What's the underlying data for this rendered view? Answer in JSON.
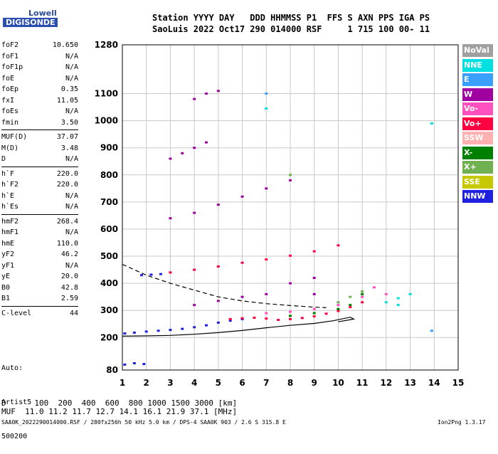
{
  "logo": {
    "line1": "Lowell",
    "line2": "DIGISONDE"
  },
  "header": {
    "line1": "Station YYYY DAY   DDD HHMMSS P1  FFS S AXN PPS IGA PS",
    "line2": "SaoLuis 2022 Oct17 290 014000 RSF     1 715 100 00- 11"
  },
  "params": [
    {
      "name": "foF2",
      "value": "10.650"
    },
    {
      "name": "foF1",
      "value": "N/A"
    },
    {
      "name": "foF1p",
      "value": "N/A"
    },
    {
      "name": "foE",
      "value": "N/A"
    },
    {
      "name": "foEp",
      "value": "0.35"
    },
    {
      "name": "fxI",
      "value": "11.05"
    },
    {
      "name": "foEs",
      "value": "N/A"
    },
    {
      "name": "fmin",
      "value": "3.50"
    },
    {
      "name": "MUF(D)",
      "value": "37.07",
      "sep": true
    },
    {
      "name": "M(D)",
      "value": "3.48"
    },
    {
      "name": "D",
      "value": "N/A"
    },
    {
      "name": "h`F",
      "value": "220.0",
      "sep": true
    },
    {
      "name": "h`F2",
      "value": "220.0"
    },
    {
      "name": "h`E",
      "value": "N/A"
    },
    {
      "name": "h`Es",
      "value": "N/A"
    },
    {
      "name": "hmF2",
      "value": "268.4",
      "sep": true
    },
    {
      "name": "hmF1",
      "value": "N/A"
    },
    {
      "name": "hmE",
      "value": "110.0"
    },
    {
      "name": "yF2",
      "value": "46.2"
    },
    {
      "name": "yF1",
      "value": "N/A"
    },
    {
      "name": "yE",
      "value": "20.0"
    },
    {
      "name": "B0",
      "value": "42.8"
    },
    {
      "name": "B1",
      "value": "2.59"
    },
    {
      "name": "C-level",
      "value": "44",
      "sep": true
    }
  ],
  "auto": {
    "line1": "Auto:",
    "line2": "Artist5",
    "line3": "500200"
  },
  "legend": [
    {
      "label": "NoVal",
      "color": "#a0a0a0"
    },
    {
      "label": "NNE",
      "color": "#00e0e0"
    },
    {
      "label": "E",
      "color": "#3aa0ff"
    },
    {
      "label": "W",
      "color": "#a000a0"
    },
    {
      "label": "Vo-",
      "color": "#ff50c0"
    },
    {
      "label": "Vo+",
      "color": "#ff0040"
    },
    {
      "label": "SSW",
      "color": "#ffb0b0"
    },
    {
      "label": "X-",
      "color": "#008000"
    },
    {
      "label": "X+",
      "color": "#70b050"
    },
    {
      "label": "SSE",
      "color": "#c8c800"
    },
    {
      "label": "NNW",
      "color": "#2020e0"
    }
  ],
  "footer": {
    "line1": "D      100  200  400  600  800 1000 1500 3000 [km]",
    "line2": "MUF  11.0 11.2 11.7 12.7 14.1 16.1 21.9 37.1 [MHz]",
    "line3": "SAA0K_2022290014000.RSF / 280fx256h 50 kHz 5.0 km / DPS-4 SAA0K 903 / 2.6 S 315.8 E",
    "line4": "Ion2Png 1.3.17"
  },
  "chart_data": {
    "type": "scatter",
    "xlabel": "",
    "ylabel": "",
    "xlim": [
      1,
      15
    ],
    "ylim": [
      80,
      1280
    ],
    "x_ticks": [
      1,
      2,
      3,
      4,
      5,
      6,
      7,
      8,
      9,
      10,
      11,
      12,
      13,
      14,
      15
    ],
    "y_ticks": [
      80,
      200,
      300,
      400,
      500,
      600,
      700,
      800,
      900,
      1000,
      1100,
      1280
    ],
    "grid": true,
    "series": [
      {
        "name": "NNW",
        "color": "#2020e0",
        "points": [
          [
            1.1,
            215
          ],
          [
            1.5,
            218
          ],
          [
            2.0,
            222
          ],
          [
            2.5,
            225
          ],
          [
            3.0,
            228
          ],
          [
            3.5,
            232
          ],
          [
            4.0,
            238
          ],
          [
            4.5,
            245
          ],
          [
            5.0,
            255
          ],
          [
            5.5,
            262
          ],
          [
            6.0,
            268
          ],
          [
            1.1,
            100
          ],
          [
            1.5,
            105
          ],
          [
            1.9,
            102
          ],
          [
            1.8,
            430
          ],
          [
            2.2,
            432
          ],
          [
            2.6,
            434
          ]
        ]
      },
      {
        "name": "Vo+",
        "color": "#ff0040",
        "points": [
          [
            5.5,
            268
          ],
          [
            6.0,
            271
          ],
          [
            6.5,
            273
          ],
          [
            7.0,
            270
          ],
          [
            7.5,
            265
          ],
          [
            8.0,
            268
          ],
          [
            8.5,
            272
          ],
          [
            9.0,
            278
          ],
          [
            9.5,
            288
          ],
          [
            10.0,
            298
          ],
          [
            10.5,
            312
          ],
          [
            11.0,
            330
          ],
          [
            3.0,
            440
          ],
          [
            4.0,
            450
          ],
          [
            5.0,
            462
          ],
          [
            6.0,
            476
          ],
          [
            7.0,
            488
          ],
          [
            8.0,
            502
          ],
          [
            9.0,
            518
          ],
          [
            10.0,
            540
          ]
        ]
      },
      {
        "name": "Vo-",
        "color": "#ff50c0",
        "points": [
          [
            7.0,
            290
          ],
          [
            8.0,
            295
          ],
          [
            9.0,
            305
          ],
          [
            10.0,
            320
          ],
          [
            11.0,
            350
          ],
          [
            11.5,
            385
          ],
          [
            12.0,
            360
          ]
        ]
      },
      {
        "name": "W",
        "color": "#a000a0",
        "points": [
          [
            4.0,
            320
          ],
          [
            5.0,
            335
          ],
          [
            6.0,
            350
          ],
          [
            7.0,
            360
          ],
          [
            8.0,
            400
          ],
          [
            9.0,
            420
          ],
          [
            3.0,
            640
          ],
          [
            4.0,
            660
          ],
          [
            5.0,
            690
          ],
          [
            6.0,
            720
          ],
          [
            7.0,
            750
          ],
          [
            8.0,
            780
          ],
          [
            3.0,
            860
          ],
          [
            3.5,
            880
          ],
          [
            4.0,
            900
          ],
          [
            4.5,
            920
          ],
          [
            4.0,
            1080
          ],
          [
            4.5,
            1100
          ],
          [
            5.0,
            1110
          ],
          [
            9.0,
            360
          ]
        ]
      },
      {
        "name": "X-",
        "color": "#008000",
        "points": [
          [
            8.0,
            280
          ],
          [
            9.0,
            290
          ],
          [
            10.0,
            305
          ],
          [
            10.5,
            320
          ],
          [
            11.0,
            360
          ]
        ]
      },
      {
        "name": "X+",
        "color": "#70b050",
        "points": [
          [
            10.0,
            330
          ],
          [
            10.5,
            350
          ],
          [
            11.0,
            370
          ],
          [
            8.0,
            800
          ]
        ]
      },
      {
        "name": "NNE",
        "color": "#00e0e0",
        "points": [
          [
            12.0,
            330
          ],
          [
            12.5,
            345
          ],
          [
            13.0,
            360
          ],
          [
            12.5,
            320
          ],
          [
            7.0,
            1045
          ],
          [
            13.9,
            990
          ]
        ]
      },
      {
        "name": "E",
        "color": "#3aa0ff",
        "points": [
          [
            7.0,
            1100
          ],
          [
            13.9,
            225
          ]
        ]
      }
    ],
    "curves": [
      {
        "name": "profile-solid",
        "points": [
          [
            1.0,
            205
          ],
          [
            2.0,
            206
          ],
          [
            3.0,
            208
          ],
          [
            4.0,
            212
          ],
          [
            5.0,
            218
          ],
          [
            6.0,
            226
          ],
          [
            7.0,
            236
          ],
          [
            8.0,
            245
          ],
          [
            9.0,
            252
          ],
          [
            9.8,
            262
          ],
          [
            10.5,
            275
          ],
          [
            10.65,
            268
          ],
          [
            10.0,
            258
          ]
        ]
      },
      {
        "name": "profile-dashed",
        "points": [
          [
            1.0,
            470
          ],
          [
            2.0,
            430
          ],
          [
            3.0,
            400
          ],
          [
            4.0,
            375
          ],
          [
            5.0,
            350
          ],
          [
            6.0,
            335
          ],
          [
            7.0,
            325
          ],
          [
            8.0,
            318
          ],
          [
            9.0,
            312
          ],
          [
            9.5,
            310
          ]
        ]
      }
    ]
  }
}
